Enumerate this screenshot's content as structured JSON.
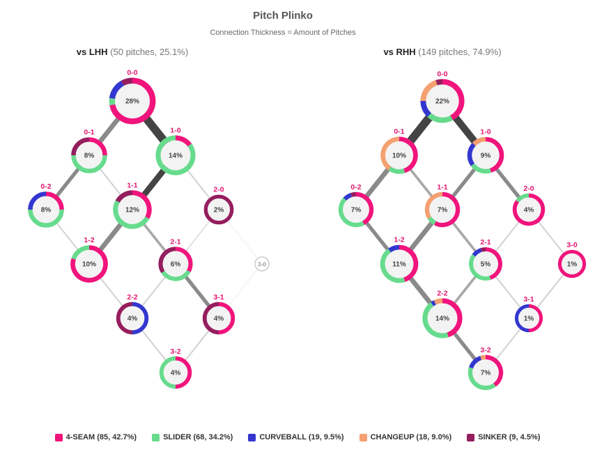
{
  "chart_data": {
    "type": "network",
    "title": "Pitch Plinko",
    "subtitle": "Connection Thickness = Amount of Pitches",
    "pitch_types": [
      {
        "key": "4seam",
        "label": "4-SEAM (85, 42.7%)",
        "color": "#F0147C"
      },
      {
        "key": "slider",
        "label": "SLIDER (68, 34.2%)",
        "color": "#67DB8D"
      },
      {
        "key": "curveball",
        "label": "CURVEBALL (19, 9.5%)",
        "color": "#3337CF"
      },
      {
        "key": "changeup",
        "label": "CHANGEUP (18, 9.0%)",
        "color": "#F4A070"
      },
      {
        "key": "sinker",
        "label": "SINKER (9, 4.5%)",
        "color": "#951E5E"
      }
    ],
    "panels": [
      {
        "name": "vs LHH",
        "detail": "(50 pitches, 25.1%)",
        "nodes": [
          {
            "count": "0-0",
            "pct": 28,
            "mix": {
              "4seam": 0.72,
              "slider": 0.05,
              "curveball": 0.15,
              "sinker": 0.08
            }
          },
          {
            "count": "0-1",
            "pct": 8,
            "mix": {
              "4seam": 0.25,
              "slider": 0.5,
              "sinker": 0.25
            }
          },
          {
            "count": "1-0",
            "pct": 14,
            "mix": {
              "4seam": 0.15,
              "slider": 0.85
            }
          },
          {
            "count": "0-2",
            "pct": 8,
            "mix": {
              "4seam": 0.25,
              "slider": 0.5,
              "curveball": 0.25
            }
          },
          {
            "count": "1-1",
            "pct": 12,
            "mix": {
              "4seam": 0.33,
              "slider": 0.5,
              "sinker": 0.17
            }
          },
          {
            "count": "2-0",
            "pct": 2,
            "mix": {
              "sinker": 1.0
            }
          },
          {
            "count": "1-2",
            "pct": 10,
            "mix": {
              "4seam": 0.8,
              "slider": 0.2
            }
          },
          {
            "count": "2-1",
            "pct": 6,
            "mix": {
              "4seam": 0.33,
              "slider": 0.33,
              "sinker": 0.34
            }
          },
          {
            "count": "3-0",
            "pct": null,
            "mix": {}
          },
          {
            "count": "2-2",
            "pct": 4,
            "mix": {
              "curveball": 0.5,
              "sinker": 0.5
            }
          },
          {
            "count": "3-1",
            "pct": 4,
            "mix": {
              "4seam": 0.5,
              "sinker": 0.5
            }
          },
          {
            "count": "3-2",
            "pct": 4,
            "mix": {
              "4seam": 0.5,
              "slider": 0.5
            }
          }
        ],
        "edges": [
          {
            "from": "0-0",
            "to": "0-1",
            "pitches": 4
          },
          {
            "from": "0-0",
            "to": "1-0",
            "pitches": 7
          },
          {
            "from": "0-1",
            "to": "0-2",
            "pitches": 3
          },
          {
            "from": "0-1",
            "to": "1-1",
            "pitches": 1
          },
          {
            "from": "1-0",
            "to": "1-1",
            "pitches": 5
          },
          {
            "from": "1-0",
            "to": "2-0",
            "pitches": 1
          },
          {
            "from": "0-2",
            "to": "1-2",
            "pitches": 1
          },
          {
            "from": "1-1",
            "to": "1-2",
            "pitches": 4
          },
          {
            "from": "1-1",
            "to": "2-1",
            "pitches": 2
          },
          {
            "from": "2-0",
            "to": "2-1",
            "pitches": 0.5
          },
          {
            "from": "2-0",
            "to": "3-0",
            "pitches": 0.2
          },
          {
            "from": "1-2",
            "to": "2-2",
            "pitches": 1
          },
          {
            "from": "2-1",
            "to": "2-2",
            "pitches": 1
          },
          {
            "from": "2-1",
            "to": "3-1",
            "pitches": 3
          },
          {
            "from": "3-0",
            "to": "3-1",
            "pitches": 0.2
          },
          {
            "from": "2-2",
            "to": "3-2",
            "pitches": 1
          },
          {
            "from": "3-1",
            "to": "3-2",
            "pitches": 1
          }
        ]
      },
      {
        "name": "vs RHH",
        "detail": "(149 pitches, 74.9%)",
        "nodes": [
          {
            "count": "0-0",
            "pct": 22,
            "mix": {
              "4seam": 0.42,
              "slider": 0.2,
              "curveball": 0.13,
              "changeup": 0.2,
              "sinker": 0.05
            }
          },
          {
            "count": "0-1",
            "pct": 10,
            "mix": {
              "4seam": 0.45,
              "slider": 0.15,
              "changeup": 0.4
            }
          },
          {
            "count": "1-0",
            "pct": 9,
            "mix": {
              "4seam": 0.45,
              "slider": 0.2,
              "curveball": 0.22,
              "changeup": 0.13
            }
          },
          {
            "count": "0-2",
            "pct": 7,
            "mix": {
              "4seam": 0.42,
              "slider": 0.45,
              "curveball": 0.08,
              "sinker": 0.05
            }
          },
          {
            "count": "1-1",
            "pct": 7,
            "mix": {
              "4seam": 0.58,
              "slider": 0.08,
              "changeup": 0.34
            }
          },
          {
            "count": "2-0",
            "pct": 4,
            "mix": {
              "4seam": 0.85,
              "slider": 0.15
            }
          },
          {
            "count": "1-2",
            "pct": 11,
            "mix": {
              "4seam": 0.45,
              "slider": 0.45,
              "curveball": 0.1
            }
          },
          {
            "count": "2-1",
            "pct": 5,
            "mix": {
              "4seam": 0.45,
              "slider": 0.4,
              "curveball": 0.1,
              "sinker": 0.05
            }
          },
          {
            "count": "3-0",
            "pct": 1,
            "mix": {
              "4seam": 1.0
            }
          },
          {
            "count": "2-2",
            "pct": 14,
            "mix": {
              "4seam": 0.45,
              "slider": 0.45,
              "curveball": 0.03,
              "changeup": 0.07
            }
          },
          {
            "count": "3-1",
            "pct": 1,
            "mix": {
              "4seam": 0.5,
              "curveball": 0.5
            }
          },
          {
            "count": "3-2",
            "pct": 7,
            "mix": {
              "4seam": 0.4,
              "slider": 0.4,
              "curveball": 0.15,
              "changeup": 0.05
            }
          }
        ],
        "edges": [
          {
            "from": "0-0",
            "to": "0-1",
            "pitches": 7
          },
          {
            "from": "0-0",
            "to": "1-0",
            "pitches": 6
          },
          {
            "from": "0-1",
            "to": "0-2",
            "pitches": 4
          },
          {
            "from": "0-1",
            "to": "1-1",
            "pitches": 2
          },
          {
            "from": "1-0",
            "to": "1-1",
            "pitches": 3
          },
          {
            "from": "1-0",
            "to": "2-0",
            "pitches": 3
          },
          {
            "from": "0-2",
            "to": "1-2",
            "pitches": 3
          },
          {
            "from": "1-1",
            "to": "1-2",
            "pitches": 4
          },
          {
            "from": "1-1",
            "to": "2-1",
            "pitches": 2
          },
          {
            "from": "2-0",
            "to": "2-1",
            "pitches": 1
          },
          {
            "from": "2-0",
            "to": "3-0",
            "pitches": 1
          },
          {
            "from": "1-2",
            "to": "2-2",
            "pitches": 4
          },
          {
            "from": "2-1",
            "to": "2-2",
            "pitches": 2
          },
          {
            "from": "2-1",
            "to": "3-1",
            "pitches": 1
          },
          {
            "from": "3-0",
            "to": "3-1",
            "pitches": 1
          },
          {
            "from": "2-2",
            "to": "3-2",
            "pitches": 3
          },
          {
            "from": "3-1",
            "to": "3-2",
            "pitches": 1
          }
        ]
      }
    ]
  }
}
